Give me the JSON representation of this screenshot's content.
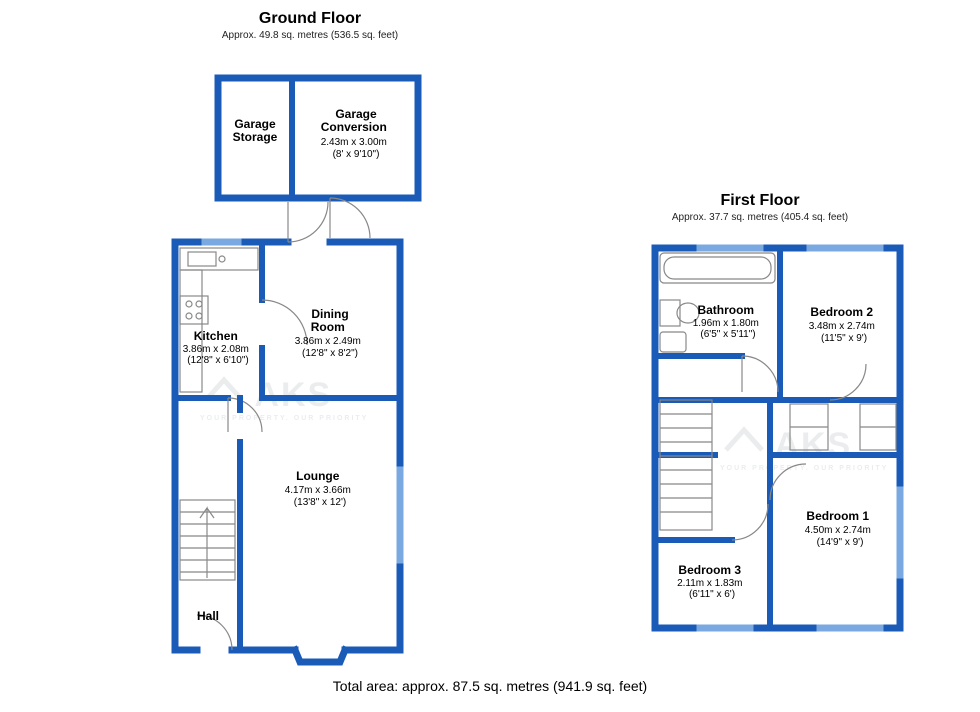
{
  "colors": {
    "wall": "#1b5bb8",
    "wall_light": "#7aa8e0",
    "thin": "#888888",
    "text": "#000000",
    "bg": "#ffffff"
  },
  "stroke": {
    "outer": 7,
    "inner": 6,
    "thin": 1.2
  },
  "titles": {
    "ground": {
      "title": "Ground Floor",
      "sub": "Approx. 49.8 sq. metres (536.5 sq. feet)"
    },
    "first": {
      "title": "First Floor",
      "sub": "Approx. 37.7 sq. metres (405.4 sq. feet)"
    }
  },
  "total": "Total area: approx. 87.5 sq. metres (941.9 sq. feet)",
  "watermark": {
    "logo": "AKS",
    "tag": "YOUR PROPERTY. OUR PRIORITY"
  },
  "ground": {
    "rooms": {
      "garage_storage": {
        "name": "Garage Storage",
        "dims": "",
        "imp": ""
      },
      "garage_conversion": {
        "name": "Garage Conversion",
        "dims": "2.43m x 3.00m",
        "imp": "(8' x 9'10\")"
      },
      "dining": {
        "name": "Dining Room",
        "dims": "3.86m x 2.49m",
        "imp": "(12'8\" x 8'2\")"
      },
      "kitchen": {
        "name": "Kitchen",
        "dims": "3.86m x 2.08m",
        "imp": "(12'8\" x 6'10\")"
      },
      "lounge": {
        "name": "Lounge",
        "dims": "4.17m x 3.66m",
        "imp": "(13'8\" x 12')"
      },
      "hall": {
        "name": "Hall",
        "dims": "",
        "imp": ""
      }
    }
  },
  "first": {
    "rooms": {
      "bathroom": {
        "name": "Bathroom",
        "dims": "1.96m x 1.80m",
        "imp": "(6'5\" x 5'11\")"
      },
      "bedroom2": {
        "name": "Bedroom 2",
        "dims": "3.48m x 2.74m",
        "imp": "(11'5\" x 9')"
      },
      "bedroom1": {
        "name": "Bedroom 1",
        "dims": "4.50m x 2.74m",
        "imp": "(14'9\" x 9')"
      },
      "bedroom3": {
        "name": "Bedroom 3",
        "dims": "2.11m x 1.83m",
        "imp": "(6'11\" x 6')"
      }
    }
  }
}
